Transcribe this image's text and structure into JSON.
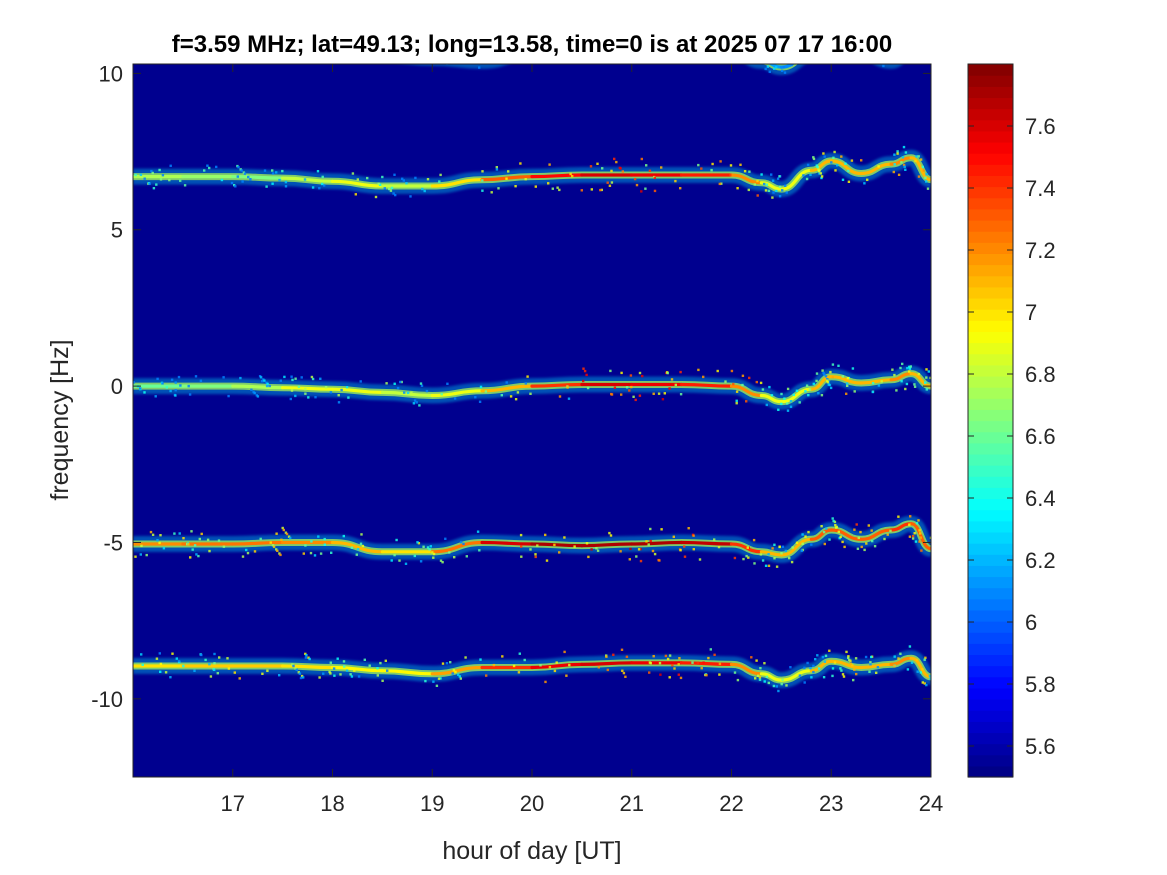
{
  "chart_data": {
    "type": "heatmap",
    "title": "f=3.59 MHz;  lat=49.13; long=13.58, time=0 is at 2025 07 17 16:00",
    "xlabel": "hour of day [UT]",
    "ylabel": "frequency [Hz]",
    "xlim": [
      16,
      24
    ],
    "ylim": [
      -12.5,
      10.3
    ],
    "x_ticks": [
      17,
      18,
      19,
      20,
      21,
      22,
      23,
      24
    ],
    "y_ticks": [
      -10,
      -5,
      0,
      5,
      10
    ],
    "colormap": "jet",
    "background_color": "#00008f",
    "colorbar": {
      "range": [
        5.5,
        7.8
      ],
      "ticks": [
        5.6,
        5.8,
        6,
        6.2,
        6.4,
        6.6,
        6.8,
        7,
        7.2,
        7.4,
        7.6
      ],
      "tick_labels": [
        "5.6",
        "5.8",
        "6",
        "6.2",
        "6.4",
        "6.6",
        "6.8",
        "7",
        "7.2",
        "7.4",
        "7.6"
      ]
    },
    "series": [
      {
        "center_freq": 10,
        "x": [
          16,
          16.5,
          17,
          17.5,
          18,
          18.5,
          19,
          19.5,
          20,
          20.5,
          21,
          21.5,
          22,
          22.3,
          22.5,
          22.8,
          23,
          23.3,
          23.6,
          23.8,
          24
        ],
        "y": [
          10.75,
          10.75,
          10.75,
          10.7,
          10.7,
          10.6,
          10.5,
          10.4,
          10.7,
          10.8,
          10.85,
          10.85,
          10.8,
          10.4,
          10.2,
          10.6,
          10.8,
          10.7,
          10.4,
          10.85,
          10.75
        ],
        "intensity": [
          6.2,
          6.0,
          6.0,
          5.8,
          5.9,
          6.0,
          6.0,
          6.0,
          6.4,
          6.6,
          6.6,
          6.6,
          6.6,
          6.3,
          6.0,
          6.2,
          6.2,
          6.2,
          6.2,
          6.2,
          6.2
        ]
      },
      {
        "center_freq": 7,
        "x": [
          16,
          16.5,
          17,
          17.5,
          18,
          18.5,
          19,
          19.5,
          20,
          20.5,
          21,
          21.5,
          22,
          22.3,
          22.5,
          22.8,
          23,
          23.3,
          23.6,
          23.8,
          24
        ],
        "y": [
          6.7,
          6.7,
          6.7,
          6.65,
          6.55,
          6.4,
          6.4,
          6.6,
          6.7,
          6.75,
          6.75,
          6.75,
          6.75,
          6.5,
          6.3,
          6.9,
          7.2,
          6.8,
          7.1,
          7.3,
          6.6
        ],
        "intensity": [
          6.8,
          6.7,
          6.7,
          6.6,
          7.0,
          6.8,
          6.8,
          7.2,
          7.4,
          7.6,
          7.6,
          7.5,
          7.4,
          7.0,
          6.8,
          7.0,
          7.2,
          7.0,
          7.2,
          7.2,
          7.0
        ]
      },
      {
        "center_freq": 0,
        "x": [
          16,
          16.5,
          17,
          17.5,
          18,
          18.5,
          19,
          19.5,
          20,
          20.5,
          21,
          21.5,
          22,
          22.3,
          22.5,
          22.8,
          23,
          23.3,
          23.6,
          23.8,
          24
        ],
        "y": [
          0,
          0,
          0,
          -0.05,
          -0.1,
          -0.2,
          -0.3,
          -0.15,
          0,
          0.05,
          0.05,
          0.05,
          0,
          -0.3,
          -0.5,
          -0.1,
          0.3,
          0.1,
          0.2,
          0.4,
          0
        ],
        "intensity": [
          6.6,
          6.6,
          6.7,
          6.8,
          7.0,
          6.8,
          6.8,
          7.0,
          7.2,
          7.6,
          7.6,
          7.5,
          7.4,
          7.0,
          6.8,
          7.0,
          7.2,
          7.0,
          7.2,
          7.2,
          7.0
        ]
      },
      {
        "center_freq": -5,
        "x": [
          16,
          16.5,
          17,
          17.5,
          18,
          18.5,
          19,
          19.5,
          20,
          20.5,
          21,
          21.5,
          22,
          22.3,
          22.5,
          22.8,
          23,
          23.3,
          23.6,
          23.8,
          24
        ],
        "y": [
          -5.05,
          -5.05,
          -5.05,
          -5.0,
          -5.0,
          -5.3,
          -5.3,
          -5.0,
          -5.05,
          -5.1,
          -5.05,
          -5.0,
          -5.05,
          -5.3,
          -5.4,
          -4.9,
          -4.6,
          -4.9,
          -4.6,
          -4.4,
          -5.2
        ],
        "intensity": [
          7.2,
          7.2,
          7.3,
          7.2,
          7.2,
          7.0,
          7.0,
          7.5,
          7.7,
          7.7,
          7.7,
          7.7,
          7.6,
          7.2,
          7.0,
          7.2,
          7.4,
          7.2,
          7.4,
          7.4,
          7.2
        ]
      },
      {
        "center_freq": -10,
        "x": [
          16,
          16.5,
          17,
          17.5,
          18,
          18.5,
          19,
          19.5,
          20,
          20.5,
          21,
          21.5,
          22,
          22.3,
          22.5,
          22.8,
          23,
          23.3,
          23.6,
          23.8,
          24
        ],
        "y": [
          -8.95,
          -8.95,
          -8.95,
          -8.95,
          -9.0,
          -9.1,
          -9.2,
          -9.0,
          -9.0,
          -8.9,
          -8.85,
          -8.85,
          -8.9,
          -9.2,
          -9.4,
          -9.1,
          -8.8,
          -9.0,
          -8.9,
          -8.7,
          -9.3
        ],
        "intensity": [
          7.0,
          7.0,
          7.1,
          7.0,
          7.0,
          6.9,
          7.0,
          7.3,
          7.5,
          7.6,
          7.6,
          7.5,
          7.4,
          7.0,
          6.8,
          7.0,
          7.2,
          7.0,
          7.2,
          7.2,
          7.0
        ]
      }
    ]
  }
}
